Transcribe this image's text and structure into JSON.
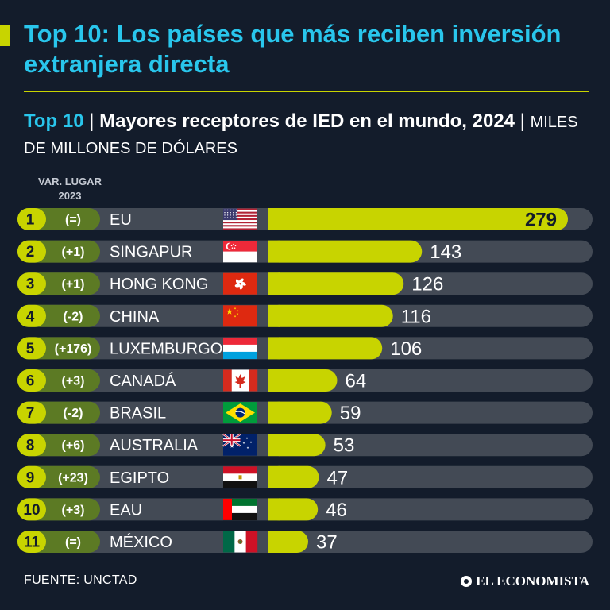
{
  "header": {
    "title": "Top 10: Los países que más reciben inversión extranjera directa",
    "subtitle_lead": "Top 10",
    "subtitle_sep1": " | ",
    "subtitle_main": "Mayores receptores de IED en el mundo, 2024",
    "subtitle_sep2": " | ",
    "subtitle_unit": "MILES DE MILLONES DE DÓLARES",
    "column_header_line1": "VAR. LUGAR",
    "column_header_line2": "2023"
  },
  "colors": {
    "background": "#131c2b",
    "title": "#29c6ec",
    "accent": "#c8d400",
    "track": "#434a55",
    "rank_chip": "#c8d400",
    "change_chip": "#5c7a24"
  },
  "chart_data": {
    "type": "bar",
    "orientation": "horizontal",
    "title": "Mayores receptores de IED en el mundo, 2024",
    "unit": "MILES DE MILLONES DE DÓLARES",
    "categories": [
      "EU",
      "SINGAPUR",
      "HONG KONG",
      "CHINA",
      "LUXEMBURGO",
      "CANADÁ",
      "BRASIL",
      "AUSTRALIA",
      "EGIPTO",
      "EAU",
      "MÉXICO"
    ],
    "ranks": [
      "1",
      "2",
      "3",
      "4",
      "5",
      "6",
      "7",
      "8",
      "9",
      "10",
      "11"
    ],
    "rank_change_2023": [
      "(=)",
      "(+1)",
      "(+1)",
      "(-2)",
      "(+176)",
      "(+3)",
      "(-2)",
      "(+6)",
      "(+23)",
      "(+3)",
      "(=)"
    ],
    "flags": [
      "usa-flag",
      "singapore-flag",
      "hong-kong-flag",
      "china-flag",
      "luxembourg-flag",
      "canada-flag",
      "brazil-flag",
      "australia-flag",
      "egypt-flag",
      "uae-flag",
      "mexico-flag"
    ],
    "values": [
      279,
      143,
      126,
      116,
      106,
      64,
      59,
      53,
      47,
      46,
      37
    ],
    "value_labels": [
      "279",
      "143",
      "126",
      "116",
      "106",
      "64",
      "59",
      "53",
      "47",
      "46",
      "37"
    ],
    "xlim": [
      0,
      279
    ]
  },
  "footer": {
    "source": "FUENTE: UNCTAD",
    "brand": "EL ECONOMISTA"
  }
}
